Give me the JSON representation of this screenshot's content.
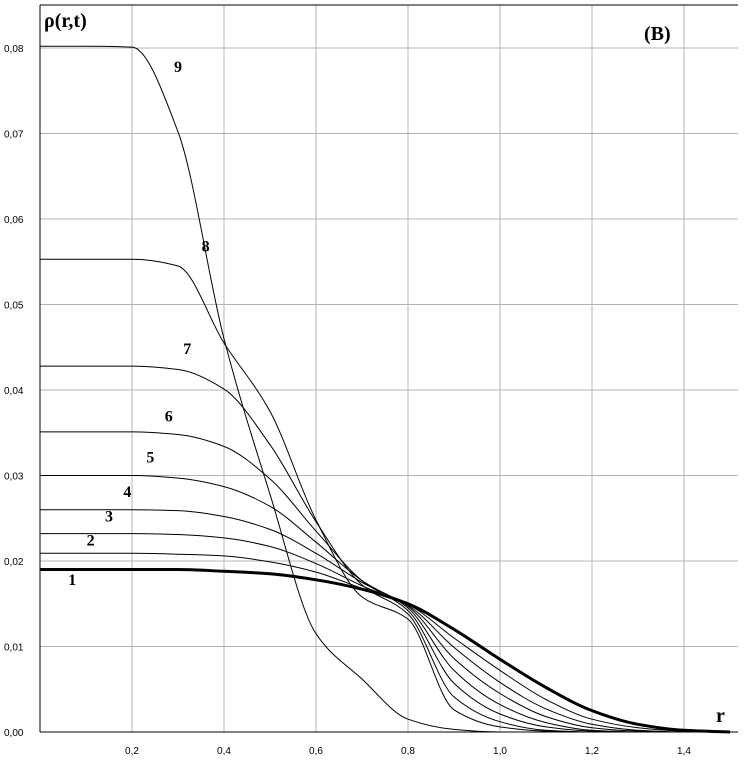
{
  "chart_data": {
    "type": "line",
    "title": "",
    "panel_label": "(B)",
    "ylabel": "ρ(r,t)",
    "xlabel": "r",
    "xlim": [
      0.0,
      1.5
    ],
    "ylim": [
      0.0,
      0.08
    ],
    "x_ticks": [
      0.2,
      0.4,
      0.6,
      0.8,
      1.0,
      1.2,
      1.4
    ],
    "x_tick_labels": [
      "0,2",
      "0,4",
      "0,6",
      "0,8",
      "1,0",
      "1,2",
      "1,4"
    ],
    "y_ticks": [
      0.0,
      0.01,
      0.02,
      0.03,
      0.04,
      0.05,
      0.06,
      0.07,
      0.08
    ],
    "y_tick_labels": [
      "0,00",
      "0,01",
      "0,02",
      "0,03",
      "0,04",
      "0,05",
      "0,06",
      "0,07",
      "0,08"
    ],
    "grid": true,
    "legend": "none",
    "x": [
      0.0,
      0.1,
      0.2,
      0.3,
      0.4,
      0.5,
      0.6,
      0.7,
      0.8,
      0.9,
      1.0,
      1.1,
      1.2,
      1.3,
      1.4,
      1.5
    ],
    "series": [
      {
        "name": "1",
        "bold": true,
        "values": [
          0.019,
          0.019,
          0.019,
          0.019,
          0.0188,
          0.0185,
          0.0178,
          0.0167,
          0.015,
          0.012,
          0.0085,
          0.0052,
          0.0025,
          0.0009,
          0.0002,
          0.0
        ]
      },
      {
        "name": "2",
        "values": [
          0.0209,
          0.0209,
          0.0209,
          0.0208,
          0.0206,
          0.0199,
          0.0187,
          0.0168,
          0.0149,
          0.011,
          0.0072,
          0.0038,
          0.0015,
          0.0005,
          0.0001,
          0.0
        ]
      },
      {
        "name": "3",
        "values": [
          0.0232,
          0.0232,
          0.0232,
          0.0231,
          0.0227,
          0.0217,
          0.0197,
          0.0171,
          0.0148,
          0.0099,
          0.0058,
          0.0027,
          0.0009,
          0.0002,
          0.0,
          0.0
        ]
      },
      {
        "name": "4",
        "values": [
          0.026,
          0.026,
          0.026,
          0.0259,
          0.0252,
          0.0237,
          0.0209,
          0.0175,
          0.0147,
          0.0086,
          0.0045,
          0.0018,
          0.0005,
          0.0001,
          0.0,
          0.0
        ]
      },
      {
        "name": "5",
        "values": [
          0.03,
          0.03,
          0.03,
          0.0297,
          0.0287,
          0.0264,
          0.0222,
          0.0177,
          0.0145,
          0.0072,
          0.0032,
          0.0011,
          0.0002,
          0.0,
          0.0,
          0.0
        ]
      },
      {
        "name": "6",
        "values": [
          0.0351,
          0.0351,
          0.0351,
          0.0348,
          0.0334,
          0.0296,
          0.0235,
          0.0177,
          0.0142,
          0.0057,
          0.0021,
          0.0006,
          0.0001,
          0.0,
          0.0,
          0.0
        ]
      },
      {
        "name": "7",
        "values": [
          0.0428,
          0.0428,
          0.0428,
          0.0424,
          0.0401,
          0.0336,
          0.0246,
          0.0172,
          0.0138,
          0.0041,
          0.0012,
          0.0002,
          0.0,
          0.0,
          0.0,
          0.0
        ]
      },
      {
        "name": "8",
        "values": [
          0.0553,
          0.0553,
          0.0553,
          0.0545,
          0.0455,
          0.0375,
          0.0248,
          0.0158,
          0.0132,
          0.0026,
          0.0006,
          0.0001,
          0.0,
          0.0,
          0.0,
          0.0
        ]
      },
      {
        "name": "9",
        "values": [
          0.0802,
          0.0802,
          0.0801,
          0.0702,
          0.046,
          0.0278,
          0.0115,
          0.0062,
          0.0015,
          0.0003,
          0.0,
          0.0,
          0.0,
          0.0,
          0.0,
          0.0
        ]
      }
    ]
  }
}
